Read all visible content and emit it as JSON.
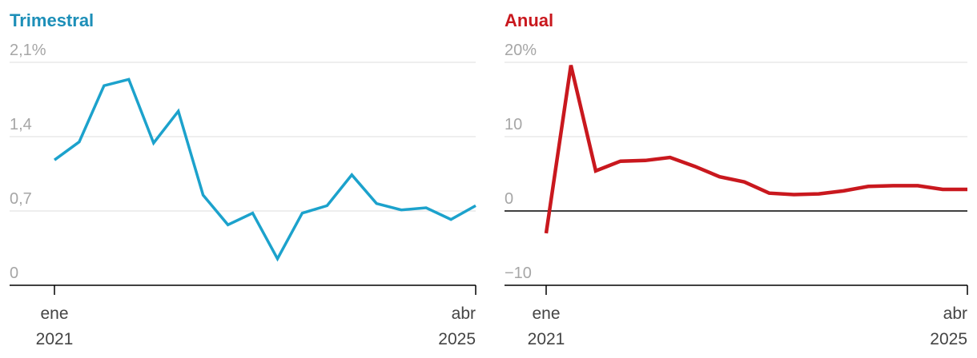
{
  "colors": {
    "left_series": "#1ca2cc",
    "right_series": "#c9181e",
    "left_title": "#1d8fb8",
    "right_title": "#c9181e"
  },
  "chart_data": [
    {
      "type": "line",
      "title": "Trimestral",
      "x_start_label": [
        "ene",
        "2021"
      ],
      "x_end_label": [
        "abr",
        "2025"
      ],
      "y_ticks": [
        "2,1%",
        "1,4",
        "0,7",
        "0"
      ],
      "y_tick_values": [
        2.1,
        1.4,
        0.7,
        0
      ],
      "ylim": [
        0,
        2.1
      ],
      "grid": true,
      "series": [
        {
          "values": [
            1.18,
            1.35,
            1.88,
            1.94,
            1.34,
            1.64,
            0.85,
            0.57,
            0.68,
            0.25,
            0.68,
            0.75,
            1.04,
            0.77,
            0.71,
            0.73,
            0.62,
            0.75
          ]
        }
      ]
    },
    {
      "type": "line",
      "title": "Anual",
      "x_start_label": [
        "ene",
        "2021"
      ],
      "x_end_label": [
        "abr",
        "2025"
      ],
      "y_ticks": [
        "20%",
        "10",
        "0",
        "−10"
      ],
      "y_tick_values": [
        20,
        10,
        0,
        -10
      ],
      "ylim": [
        -10,
        20
      ],
      "grid": true,
      "zero_line": true,
      "series": [
        {
          "values": [
            -3,
            19.6,
            5.4,
            6.7,
            6.8,
            7.2,
            6,
            4.6,
            3.9,
            2.4,
            2.2,
            2.3,
            2.7,
            3.3,
            3.4,
            3.4,
            2.9,
            2.9
          ]
        }
      ]
    }
  ]
}
